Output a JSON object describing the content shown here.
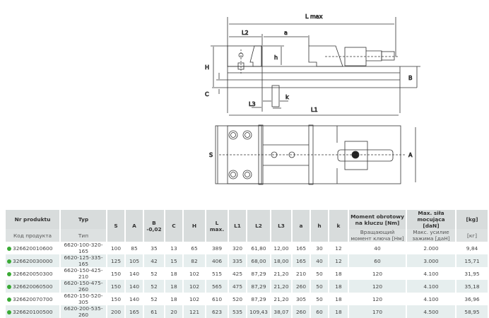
{
  "drawing": {
    "labels": {
      "lmax": "L max",
      "l2": "L2",
      "a": "a",
      "h": "h",
      "H": "H",
      "C": "C",
      "B": "B",
      "L3": "L3",
      "k": "k",
      "L1": "L1",
      "S": "S",
      "A": "A"
    }
  },
  "table": {
    "headers": [
      {
        "pl": "Nr produktu",
        "ru": "Код продукта"
      },
      {
        "pl": "Typ",
        "ru": "Тип"
      },
      {
        "pl": "S"
      },
      {
        "pl": "A"
      },
      {
        "pl": "B -0,02"
      },
      {
        "pl": "C"
      },
      {
        "pl": "H"
      },
      {
        "pl": "L max."
      },
      {
        "pl": "L1"
      },
      {
        "pl": "L2"
      },
      {
        "pl": "L3"
      },
      {
        "pl": "a"
      },
      {
        "pl": "h"
      },
      {
        "pl": "k"
      },
      {
        "pl": "Moment obrotowy na kluczu [Nm]",
        "ru": "Вращающий момент ключа [Нм]"
      },
      {
        "pl": "Max. siła mocująca [daN]",
        "ru": "Макс. усилие зажима [даН]"
      },
      {
        "pl": "[kg]",
        "ru": "[кг]"
      }
    ],
    "status_color": "#3aaa35",
    "rows": [
      [
        "326620010600",
        "6620-100-320-165",
        "100",
        "85",
        "35",
        "13",
        "65",
        "389",
        "320",
        "61,80",
        "12,00",
        "165",
        "30",
        "12",
        "40",
        "2.000",
        "9,84"
      ],
      [
        "326620030000",
        "6620-125-335-165",
        "125",
        "105",
        "42",
        "15",
        "82",
        "406",
        "335",
        "68,00",
        "18,00",
        "165",
        "40",
        "12",
        "60",
        "3.000",
        "15,71"
      ],
      [
        "326620050300",
        "6620-150-425-210",
        "150",
        "140",
        "52",
        "18",
        "102",
        "515",
        "425",
        "87,29",
        "21,20",
        "210",
        "50",
        "18",
        "120",
        "4.100",
        "31,95"
      ],
      [
        "326620060500",
        "6620-150-475-260",
        "150",
        "140",
        "52",
        "18",
        "102",
        "565",
        "475",
        "87,29",
        "21,20",
        "260",
        "50",
        "18",
        "120",
        "4.100",
        "35,18"
      ],
      [
        "326620070700",
        "6620-150-520-305",
        "150",
        "140",
        "52",
        "18",
        "102",
        "610",
        "520",
        "87,29",
        "21,20",
        "305",
        "50",
        "18",
        "120",
        "4.100",
        "36,96"
      ],
      [
        "326620100500",
        "6620-200-535-260",
        "200",
        "165",
        "61",
        "20",
        "121",
        "623",
        "535",
        "109,43",
        "38,07",
        "260",
        "60",
        "18",
        "170",
        "4.500",
        "58,95"
      ]
    ]
  }
}
